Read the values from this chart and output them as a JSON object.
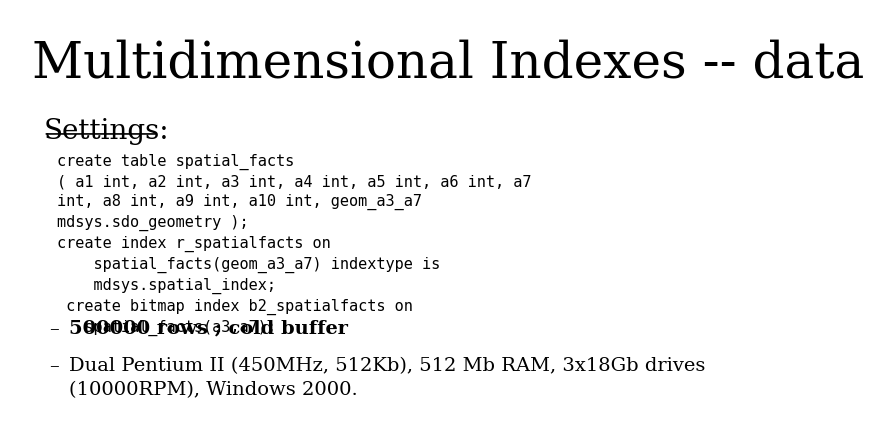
{
  "title": "Multidimensional Indexes -- data",
  "title_fontsize": 36,
  "title_font": "DejaVu Serif",
  "background_color": "#ffffff",
  "text_color": "#000000",
  "settings_label": "Settings:",
  "settings_fontsize": 20,
  "settings_font": "DejaVu Serif",
  "code_block": "create table spatial_facts\n( a1 int, a2 int, a3 int, a4 int, a5 int, a6 int, a7\nint, a8 int, a9 int, a10 int, geom_a3_a7\nmdsys.sdo_geometry );\ncreate index r_spatialfacts on\n    spatial_facts(geom_a3_a7) indextype is\n    mdsys.spatial_index;\n create bitmap index b2_spatialfacts on\n   spatial_facts(a3,a7);",
  "code_fontsize": 11,
  "bullet1": "500000 rows ; cold buffer",
  "bullet2_line1": "Dual Pentium II (450MHz, 512Kb), 512 Mb RAM, 3x18Gb drives",
  "bullet2_line2": "(10000RPM), Windows 2000.",
  "bullet_fontsize": 14,
  "bullet_font": "DejaVu Serif"
}
